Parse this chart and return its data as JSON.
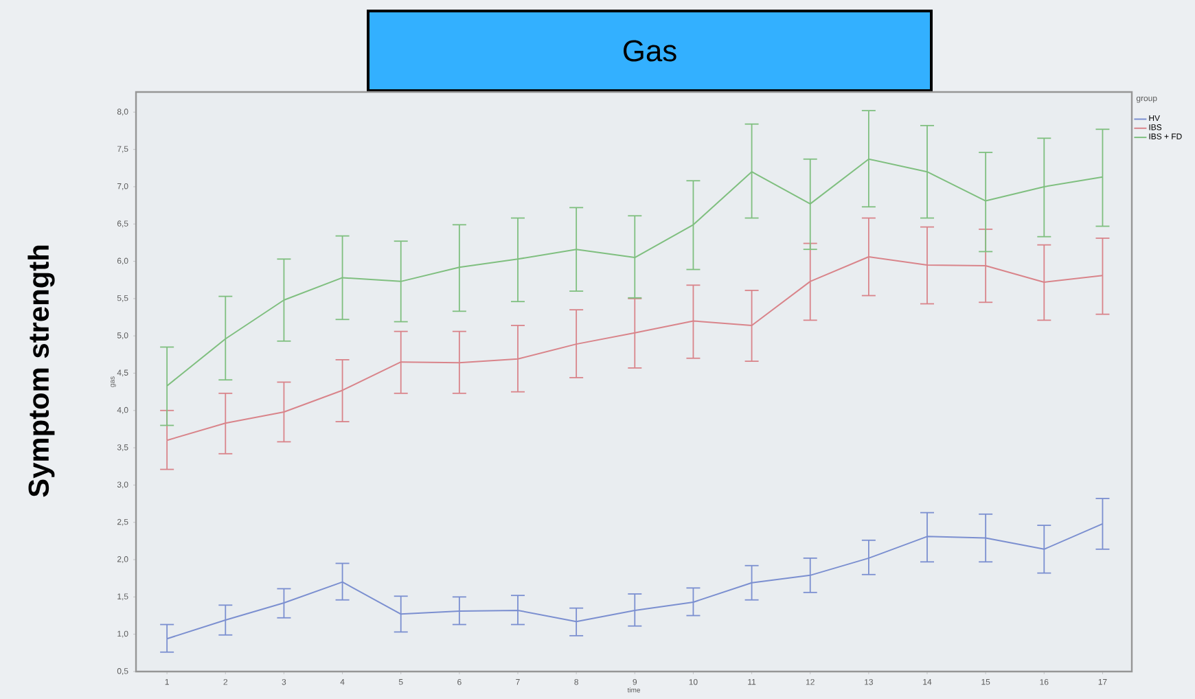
{
  "chart_data": {
    "type": "line",
    "title": "Gas",
    "xlabel": "time",
    "ylabel": "gas",
    "legend_title": "group",
    "annotations": [
      "Symptom strength"
    ],
    "x": [
      1,
      2,
      3,
      4,
      5,
      6,
      7,
      8,
      9,
      10,
      11,
      12,
      13,
      14,
      15,
      16,
      17
    ],
    "xlim": [
      0.47,
      17.5
    ],
    "xticks": [
      1,
      2,
      3,
      4,
      5,
      6,
      7,
      8,
      9,
      10,
      11,
      12,
      13,
      14,
      15,
      16,
      17
    ],
    "ylim": [
      0.5,
      8.27
    ],
    "yticks": [
      {
        "value": 0.5,
        "label": "0,5"
      },
      {
        "value": 1,
        "label": "1,0"
      },
      {
        "value": 1.5,
        "label": "1,5"
      },
      {
        "value": 2,
        "label": "2,0"
      },
      {
        "value": 2.5,
        "label": "2,5"
      },
      {
        "value": 3,
        "label": "3,0"
      },
      {
        "value": 3.5,
        "label": "3,5"
      },
      {
        "value": 4,
        "label": "4,0"
      },
      {
        "value": 4.5,
        "label": "4,5"
      },
      {
        "value": 5,
        "label": "5,0"
      },
      {
        "value": 5.5,
        "label": "5,5"
      },
      {
        "value": 6,
        "label": "6,0"
      },
      {
        "value": 6.5,
        "label": "6,5"
      },
      {
        "value": 7,
        "label": "7,0"
      },
      {
        "value": 7.5,
        "label": "7,5"
      },
      {
        "value": 8,
        "label": "8,0"
      }
    ],
    "grid": false,
    "legend": "top right",
    "marker": "none",
    "line_style": "solid",
    "series": [
      {
        "name": "HV",
        "color": "#7b8fd0",
        "values": [
          0.94,
          1.19,
          1.42,
          1.7,
          1.27,
          1.31,
          1.32,
          1.17,
          1.32,
          1.43,
          1.69,
          1.79,
          2.02,
          2.31,
          2.29,
          2.14,
          2.48
        ],
        "errors": [
          [
            0.76,
            1.13
          ],
          [
            0.99,
            1.39
          ],
          [
            1.22,
            1.61
          ],
          [
            1.46,
            1.95
          ],
          [
            1.03,
            1.51
          ],
          [
            1.13,
            1.5
          ],
          [
            1.13,
            1.52
          ],
          [
            0.98,
            1.35
          ],
          [
            1.11,
            1.54
          ],
          [
            1.25,
            1.62
          ],
          [
            1.46,
            1.92
          ],
          [
            1.56,
            2.02
          ],
          [
            1.8,
            2.26
          ],
          [
            1.97,
            2.63
          ],
          [
            1.97,
            2.61
          ],
          [
            1.82,
            2.46
          ],
          [
            2.14,
            2.82
          ]
        ]
      },
      {
        "name": "IBS",
        "color": "#d9848a",
        "values": [
          3.6,
          3.83,
          3.98,
          4.27,
          4.65,
          4.64,
          4.69,
          4.89,
          5.04,
          5.2,
          5.14,
          5.73,
          6.06,
          5.95,
          5.94,
          5.72,
          5.81
        ],
        "errors": [
          [
            3.21,
            4.0
          ],
          [
            3.42,
            4.23
          ],
          [
            3.58,
            4.38
          ],
          [
            3.85,
            4.68
          ],
          [
            4.23,
            5.06
          ],
          [
            4.23,
            5.06
          ],
          [
            4.25,
            5.14
          ],
          [
            4.44,
            5.35
          ],
          [
            4.57,
            5.5
          ],
          [
            4.7,
            5.68
          ],
          [
            4.66,
            5.61
          ],
          [
            5.21,
            6.24
          ],
          [
            5.54,
            6.58
          ],
          [
            5.43,
            6.46
          ],
          [
            5.45,
            6.43
          ],
          [
            5.21,
            6.22
          ],
          [
            5.29,
            6.31
          ]
        ]
      },
      {
        "name": "IBS + FD",
        "color": "#7fbf7f",
        "values": [
          4.33,
          4.96,
          5.48,
          5.78,
          5.73,
          5.92,
          6.03,
          6.16,
          6.05,
          6.49,
          7.2,
          6.77,
          7.37,
          7.2,
          6.81,
          7.0,
          7.13
        ],
        "errors": [
          [
            3.8,
            4.85
          ],
          [
            4.41,
            5.53
          ],
          [
            4.93,
            6.03
          ],
          [
            5.22,
            6.34
          ],
          [
            5.19,
            6.27
          ],
          [
            5.33,
            6.49
          ],
          [
            5.46,
            6.58
          ],
          [
            5.6,
            6.72
          ],
          [
            5.51,
            6.61
          ],
          [
            5.89,
            7.08
          ],
          [
            6.58,
            7.84
          ],
          [
            6.16,
            7.37
          ],
          [
            6.73,
            8.02
          ],
          [
            6.58,
            7.82
          ],
          [
            6.13,
            7.46
          ],
          [
            6.33,
            7.65
          ],
          [
            6.47,
            7.77
          ]
        ]
      }
    ]
  }
}
